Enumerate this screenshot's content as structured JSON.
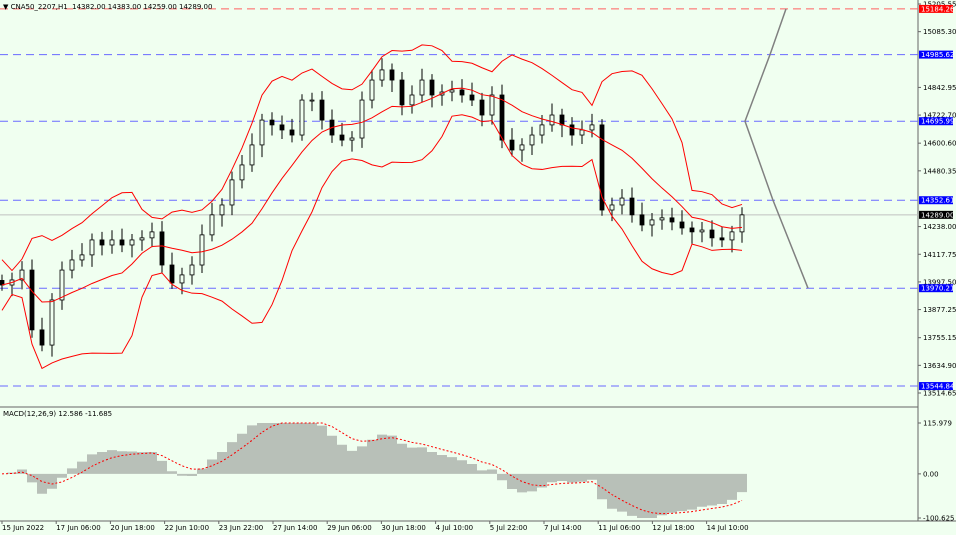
{
  "header": {
    "symbol_tf": "CNA50_2207,H1",
    "ohlc": "14382.00 14383.00 14259.00 14289.00"
  },
  "macd_label": "MACD(12,26,9) 12.586 -11.685",
  "colors": {
    "background": "#f0fff0",
    "bands": "#ff0000",
    "level_blue": "#0000ff",
    "level_red": "#ff0000",
    "candles": "#000000",
    "macd_hist": "#808080",
    "macd_signal": "#ff0000",
    "arrows": "#808080"
  },
  "chart_data": {
    "type": "candlestick",
    "price_axis": {
      "ylim": [
        13514.65,
        15205.55
      ],
      "ticks": [
        "15205.55",
        "15085.30",
        "14842.95",
        "14722.70",
        "14600.60",
        "14480.35",
        "14238.00",
        "14117.75",
        "13997.50",
        "13877.25",
        "13755.15",
        "13634.90",
        "13514.65"
      ]
    },
    "time_axis": {
      "ticks": [
        "15 Jun 2022",
        "17 Jun 06:00",
        "20 Jun 18:00",
        "22 Jun 10:00",
        "23 Jun 22:00",
        "27 Jun 14:00",
        "29 Jun 06:00",
        "30 Jun 18:00",
        "4 Jul 10:00",
        "5 Jul 22:00",
        "7 Jul 14:00",
        "11 Jul 06:00",
        "12 Jul 18:00",
        "14 Jul 10:00"
      ]
    },
    "closes": [
      13984,
      14006,
      14049,
      13789,
      13723,
      13919,
      14049,
      14093,
      14115,
      14180,
      14158,
      14180,
      14158,
      14180,
      14189,
      14215,
      14071,
      13993,
      14028,
      14071,
      14202,
      14289,
      14332,
      14441,
      14506,
      14593,
      14701,
      14680,
      14658,
      14636,
      14788,
      14788,
      14701,
      14636,
      14614,
      14623,
      14788,
      14875,
      14919,
      14875,
      14767,
      14810,
      14875,
      14810,
      14823,
      14832,
      14810,
      14788,
      14723,
      14810,
      14614,
      14571,
      14593,
      14636,
      14680,
      14723,
      14680,
      14636,
      14658,
      14680,
      14310,
      14332,
      14362,
      14289,
      14245,
      14267,
      14276,
      14258,
      14232,
      14215,
      14223,
      14189,
      14180,
      14215,
      14289
    ],
    "indicators": [
      "Bollinger Bands",
      "MACD(12,26,9)"
    ],
    "levels": [
      {
        "price": "15184.26",
        "color": "red"
      },
      {
        "price": "14985.62",
        "color": "blue"
      },
      {
        "price": "14695.99",
        "color": "blue"
      },
      {
        "price": "14352.61",
        "color": "blue"
      },
      {
        "price": "13970.21",
        "color": "blue"
      },
      {
        "price": "13544.84",
        "color": "blue"
      }
    ],
    "current_price": "14289.00",
    "macd_axis": {
      "ylim": [
        -100.625,
        115.979
      ],
      "ticks": [
        "115.979",
        "0.00",
        "-100.625"
      ]
    },
    "projection_targets": [
      15184.26,
      13970.21
    ]
  }
}
